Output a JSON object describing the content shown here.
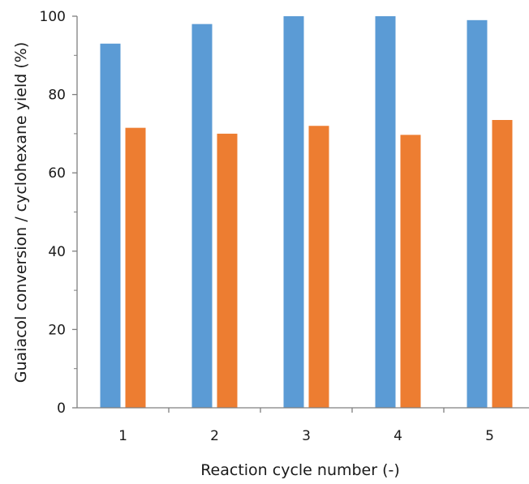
{
  "chart_data": {
    "type": "bar",
    "title": "",
    "xlabel": "Reaction cycle number (-)",
    "ylabel": "Guaiacol conversion  / cyclohexane yield (%)",
    "categories": [
      "1",
      "2",
      "3",
      "4",
      "5"
    ],
    "series": [
      {
        "values": [
          93,
          98,
          100,
          100,
          99
        ],
        "color": "#5b9bd5"
      },
      {
        "values": [
          71.5,
          70,
          72,
          69.7,
          73.5
        ],
        "color": "#ed7d31"
      }
    ],
    "ylim": [
      0,
      100
    ],
    "yticks": [
      "0",
      "20",
      "40",
      "60",
      "80",
      "100"
    ],
    "grid": false,
    "legend": "none"
  }
}
